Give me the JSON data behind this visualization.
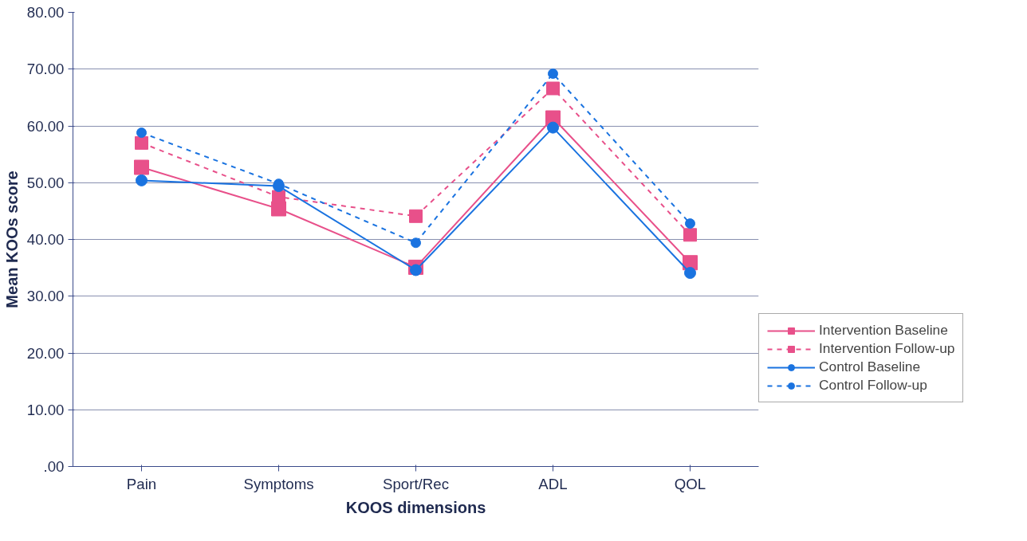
{
  "chart_data": {
    "type": "line",
    "xlabel": "KOOS dimensions",
    "ylabel": "Mean KOOs score",
    "categories": [
      "Pain",
      "Symptoms",
      "Sport/Rec",
      "ADL",
      "QOL"
    ],
    "series": [
      {
        "name": "Intervention Baseline",
        "color": "#e8508a",
        "marker": "square",
        "line_style": "solid",
        "values": [
          52.7,
          45.4,
          35.1,
          61.4,
          35.9
        ]
      },
      {
        "name": "Intervention Follow-up",
        "color": "#e8508a",
        "marker": "square",
        "line_style": "dashed",
        "values": [
          57.0,
          47.5,
          44.1,
          66.6,
          40.8
        ]
      },
      {
        "name": "Control Baseline",
        "color": "#1a73e0",
        "marker": "circle",
        "line_style": "solid",
        "values": [
          50.4,
          49.4,
          34.6,
          59.7,
          34.1
        ]
      },
      {
        "name": "Control Follow-up",
        "color": "#1a73e0",
        "marker": "circle",
        "line_style": "dashed",
        "values": [
          58.8,
          49.8,
          39.4,
          69.2,
          42.8
        ]
      }
    ],
    "ylim": [
      0,
      80
    ],
    "yticks": [
      {
        "value": 0,
        "label": ".00"
      },
      {
        "value": 10,
        "label": "10.00"
      },
      {
        "value": 20,
        "label": "20.00"
      },
      {
        "value": 30,
        "label": "30.00"
      },
      {
        "value": 40,
        "label": "40.00"
      },
      {
        "value": 50,
        "label": "50.00"
      },
      {
        "value": 60,
        "label": "60.00"
      },
      {
        "value": 70,
        "label": "70.00"
      },
      {
        "value": 80,
        "label": "80.00"
      }
    ],
    "grid": "y",
    "legend": "right"
  }
}
